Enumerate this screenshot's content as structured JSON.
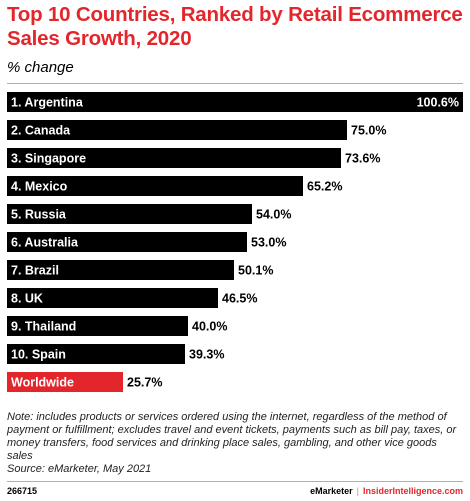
{
  "chart_data": {
    "type": "bar",
    "orientation": "horizontal",
    "title": "Top 10 Countries, Ranked by Retail Ecommerce Sales Growth, 2020",
    "subtitle": "% change",
    "categories": [
      "1. Argentina",
      "2. Canada",
      "3. Singapore",
      "4. Mexico",
      "5. Russia",
      "6. Australia",
      "7. Brazil",
      "8. UK",
      "9. Thailand",
      "10. Spain",
      "Worldwide"
    ],
    "values": [
      100.6,
      75.0,
      73.6,
      65.2,
      54.0,
      53.0,
      50.1,
      46.5,
      40.0,
      39.3,
      25.7
    ],
    "value_labels": [
      "100.6%",
      "75.0%",
      "73.6%",
      "65.2%",
      "54.0%",
      "53.0%",
      "50.1%",
      "46.5%",
      "40.0%",
      "39.3%",
      "25.7%"
    ],
    "bar_colors": [
      "#000000",
      "#000000",
      "#000000",
      "#000000",
      "#000000",
      "#000000",
      "#000000",
      "#000000",
      "#000000",
      "#000000",
      "#e3262b"
    ],
    "xlim": [
      0,
      100.6
    ],
    "grid": false,
    "legend": "none"
  },
  "note": "Note: includes products or services ordered using the internet, regardless of the method of payment or fulfillment; excludes travel and event tickets, payments such as bill pay, taxes, or money transfers, food services and drinking place sales, gambling, and other vice goods sales",
  "source": "Source: eMarketer, May 2021",
  "footer": {
    "id": "266715",
    "brand1": "eMarketer",
    "separator": "|",
    "brand2": "InsiderIntelligence.com"
  },
  "colors": {
    "accent": "#e3262b",
    "bar": "#000000"
  }
}
